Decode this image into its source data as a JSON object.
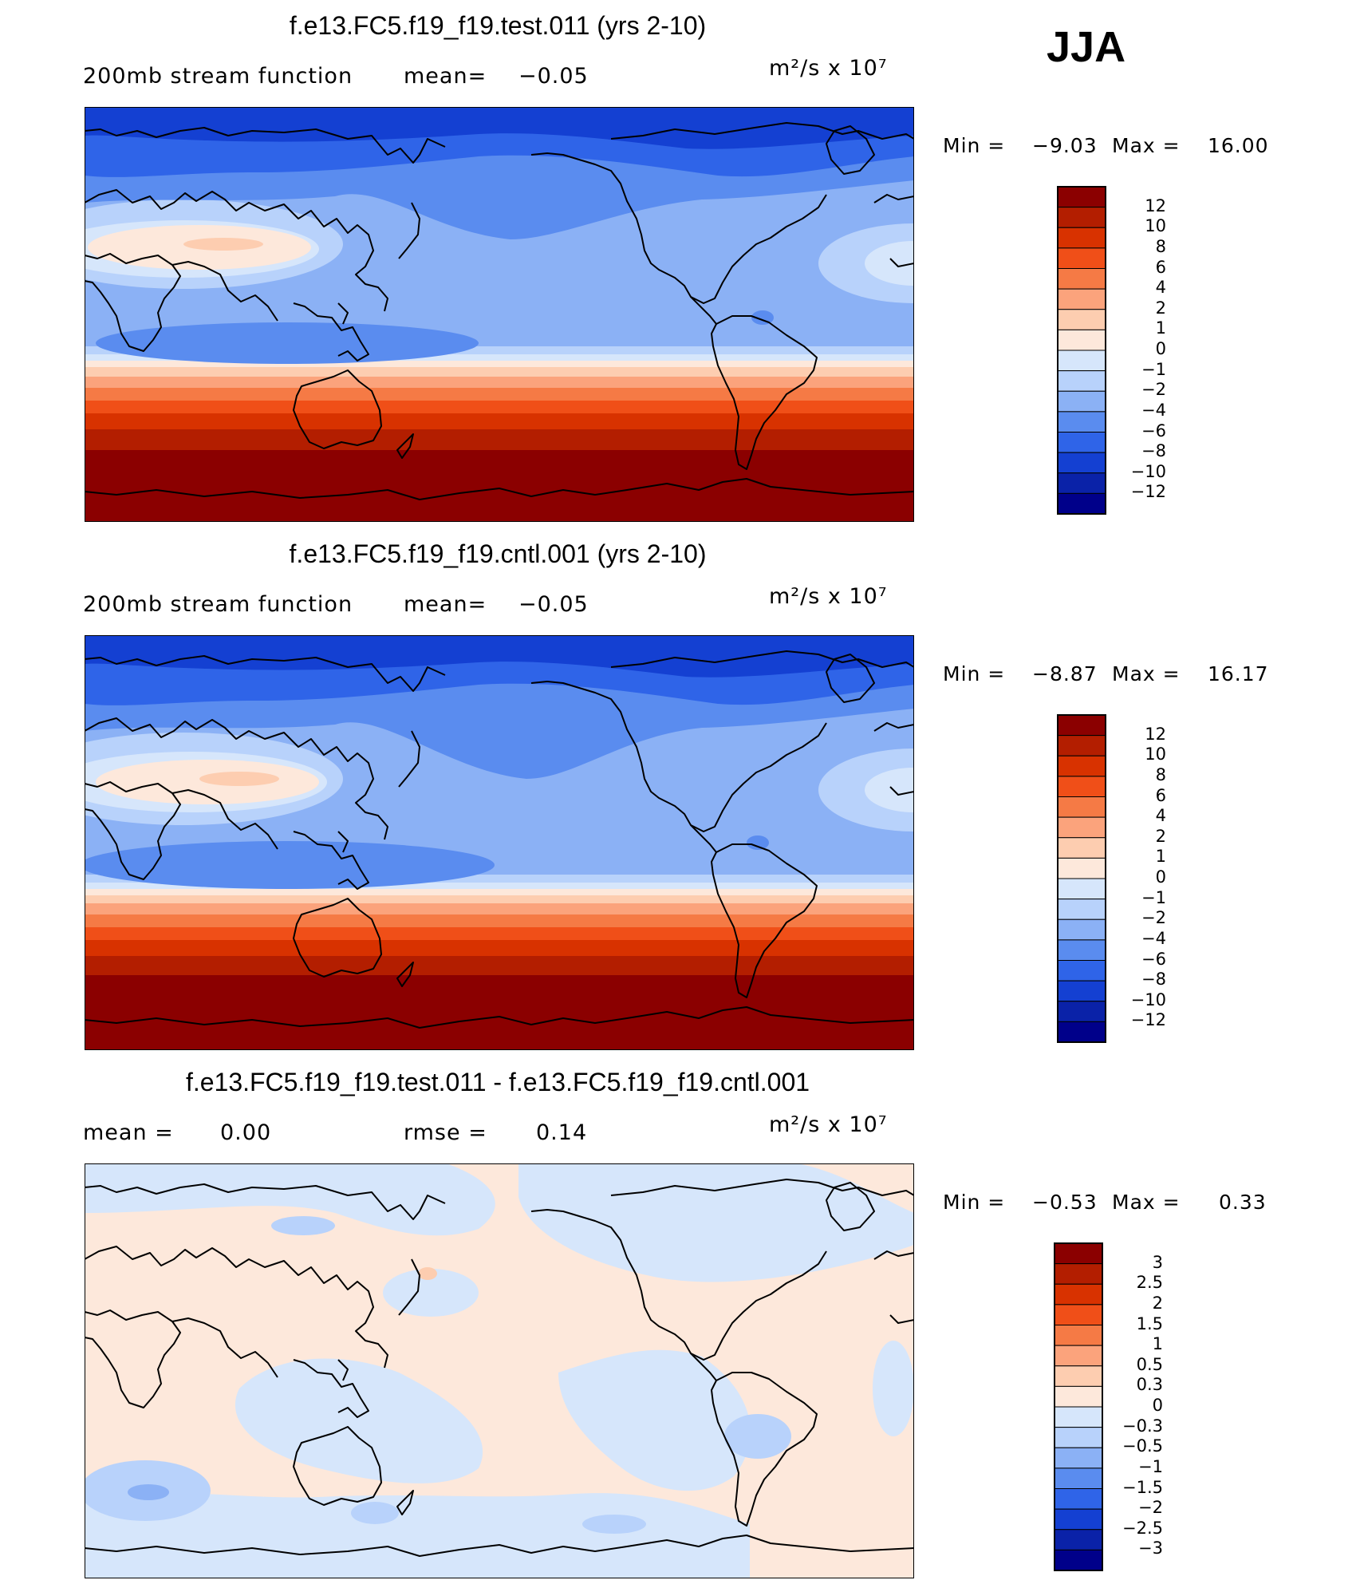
{
  "season": "JJA",
  "panels": [
    {
      "title": "f.e13.FC5.f19_f19.test.011 (yrs 2-10)",
      "left_label": "200mb  stream  function",
      "middle_label": "mean=",
      "middle_value": "−0.05",
      "units": "m²/s x 10⁷",
      "min_label": "Min  =",
      "min_value": "−9.03",
      "max_label": "Max  =",
      "max_value": "16.00",
      "colorbar": [
        "12",
        "10",
        "8",
        "6",
        "4",
        "2",
        "1",
        "0",
        "−1",
        "−2",
        "−4",
        "−6",
        "−8",
        "−10",
        "−12"
      ]
    },
    {
      "title": "f.e13.FC5.f19_f19.cntl.001 (yrs 2-10)",
      "left_label": "200mb  stream  function",
      "middle_label": "mean=",
      "middle_value": "−0.05",
      "units": "m²/s x 10⁷",
      "min_label": "Min  =",
      "min_value": "−8.87",
      "max_label": "Max  =",
      "max_value": "16.17",
      "colorbar": [
        "12",
        "10",
        "8",
        "6",
        "4",
        "2",
        "1",
        "0",
        "−1",
        "−2",
        "−4",
        "−6",
        "−8",
        "−10",
        "−12"
      ]
    },
    {
      "title": "f.e13.FC5.f19_f19.test.011 - f.e13.FC5.f19_f19.cntl.001",
      "left_label": "mean  =",
      "left_value": "0.00",
      "middle_label": "rmse  =",
      "middle_value": "0.14",
      "units": "m²/s x 10⁷",
      "min_label": "Min  =",
      "min_value": "−0.53",
      "max_label": "Max  =",
      "max_value": "0.33",
      "colorbar": [
        "3",
        "2.5",
        "2",
        "1.5",
        "1",
        "0.5",
        "0.3",
        "0",
        "−0.3",
        "−0.5",
        "−1",
        "−1.5",
        "−2",
        "−2.5",
        "−3"
      ]
    }
  ],
  "colors": {
    "scale": [
      "#8b0000",
      "#b31e00",
      "#d83200",
      "#f04f18",
      "#f57a45",
      "#fba37c",
      "#fdcdb0",
      "#fde8db",
      "#d6e6fb",
      "#b8d2fb",
      "#8bb1f5",
      "#5a8cef",
      "#2f64e8",
      "#1440d2",
      "#0a22a8",
      "#00008a"
    ]
  }
}
